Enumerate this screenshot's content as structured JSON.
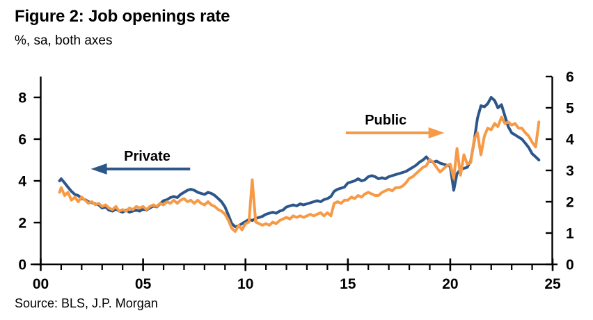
{
  "source": "Source: BLS, J.P. Morgan",
  "colors": {
    "private": "#2D5789",
    "public": "#F79A47",
    "axis": "#000000",
    "background": "#FFFFFF"
  },
  "chart_data": {
    "type": "line",
    "title": "Figure 2: Job openings rate",
    "subtitle": "%, sa, both axes",
    "grid": "off",
    "legend": "inline-arrow-annotations",
    "x_axis": {
      "unit": "year",
      "range": [
        2000,
        2025
      ],
      "major_tick_years": [
        2000,
        2005,
        2010,
        2015,
        2020,
        2025
      ],
      "major_tick_labels": [
        "00",
        "05",
        "10",
        "15",
        "20",
        "25"
      ],
      "minor_tick_step": 1
    },
    "left_axis": {
      "for_series": "Private",
      "range": [
        0,
        9
      ],
      "tick_values": [
        0,
        2,
        4,
        6,
        8
      ]
    },
    "right_axis": {
      "for_series": "Public",
      "range": [
        0,
        6
      ],
      "tick_values": [
        0,
        1,
        2,
        3,
        4,
        5,
        6
      ]
    },
    "x": [
      2000.92,
      2001,
      2001.17,
      2001.33,
      2001.5,
      2001.67,
      2001.83,
      2002,
      2002.17,
      2002.33,
      2002.5,
      2002.67,
      2002.83,
      2003,
      2003.17,
      2003.33,
      2003.5,
      2003.67,
      2003.83,
      2004,
      2004.17,
      2004.33,
      2004.5,
      2004.67,
      2004.83,
      2005,
      2005.17,
      2005.33,
      2005.5,
      2005.67,
      2005.83,
      2006,
      2006.17,
      2006.33,
      2006.5,
      2006.67,
      2006.83,
      2007,
      2007.17,
      2007.33,
      2007.5,
      2007.67,
      2007.83,
      2008,
      2008.17,
      2008.33,
      2008.5,
      2008.67,
      2008.83,
      2009,
      2009.17,
      2009.33,
      2009.5,
      2009.67,
      2009.83,
      2010,
      2010.17,
      2010.33,
      2010.5,
      2010.67,
      2010.83,
      2011,
      2011.17,
      2011.33,
      2011.5,
      2011.67,
      2011.83,
      2012,
      2012.17,
      2012.33,
      2012.5,
      2012.67,
      2012.83,
      2013,
      2013.17,
      2013.33,
      2013.5,
      2013.67,
      2013.83,
      2014,
      2014.17,
      2014.33,
      2014.5,
      2014.67,
      2014.83,
      2015,
      2015.17,
      2015.33,
      2015.5,
      2015.67,
      2015.83,
      2016,
      2016.17,
      2016.33,
      2016.5,
      2016.67,
      2016.83,
      2017,
      2017.17,
      2017.33,
      2017.5,
      2017.67,
      2017.83,
      2018,
      2018.17,
      2018.33,
      2018.5,
      2018.67,
      2018.83,
      2019,
      2019.17,
      2019.33,
      2019.5,
      2019.67,
      2019.83,
      2020,
      2020.17,
      2020.33,
      2020.5,
      2020.67,
      2020.83,
      2021,
      2021.17,
      2021.33,
      2021.5,
      2021.67,
      2021.83,
      2022,
      2022.17,
      2022.33,
      2022.5,
      2022.67,
      2022.83,
      2023,
      2023.17,
      2023.33,
      2023.5,
      2023.67,
      2023.83,
      2024,
      2024.17,
      2024.33
    ],
    "series": [
      {
        "name": "Private",
        "axis": "left",
        "color": "#2D5789",
        "values": [
          4.0,
          4.1,
          3.9,
          3.7,
          3.5,
          3.35,
          3.3,
          3.15,
          3.1,
          3.0,
          2.95,
          2.9,
          2.85,
          2.7,
          2.75,
          2.6,
          2.55,
          2.65,
          2.55,
          2.5,
          2.6,
          2.5,
          2.55,
          2.6,
          2.55,
          2.65,
          2.6,
          2.7,
          2.8,
          2.75,
          2.9,
          3.05,
          3.1,
          3.2,
          3.25,
          3.2,
          3.35,
          3.45,
          3.55,
          3.6,
          3.55,
          3.45,
          3.4,
          3.35,
          3.45,
          3.4,
          3.3,
          3.15,
          3.0,
          2.75,
          2.35,
          1.95,
          1.8,
          1.85,
          1.95,
          2.05,
          2.15,
          2.1,
          2.2,
          2.25,
          2.3,
          2.4,
          2.45,
          2.5,
          2.45,
          2.55,
          2.6,
          2.75,
          2.8,
          2.85,
          2.8,
          2.9,
          2.85,
          2.9,
          2.95,
          3.0,
          3.05,
          3.0,
          3.1,
          3.15,
          3.25,
          3.5,
          3.6,
          3.65,
          3.7,
          3.9,
          3.95,
          4.0,
          4.1,
          4.0,
          4.05,
          4.2,
          4.25,
          4.2,
          4.1,
          4.15,
          4.1,
          4.2,
          4.25,
          4.3,
          4.35,
          4.4,
          4.45,
          4.55,
          4.65,
          4.75,
          4.9,
          5.0,
          5.15,
          4.95,
          4.9,
          4.95,
          4.85,
          4.8,
          4.75,
          4.7,
          3.55,
          4.35,
          4.55,
          4.6,
          4.65,
          4.95,
          5.9,
          7.0,
          7.6,
          7.55,
          7.7,
          8.0,
          7.85,
          7.5,
          7.65,
          7.1,
          6.6,
          6.3,
          6.2,
          6.1,
          6.0,
          5.8,
          5.6,
          5.3,
          5.15,
          5.0
        ]
      },
      {
        "name": "Public",
        "axis": "right",
        "color": "#F79A47",
        "values": [
          2.3,
          2.45,
          2.2,
          2.3,
          2.05,
          2.15,
          2.0,
          2.15,
          2.05,
          1.95,
          2.0,
          1.9,
          1.95,
          1.85,
          1.9,
          1.8,
          1.75,
          1.85,
          1.7,
          1.75,
          1.7,
          1.8,
          1.75,
          1.85,
          1.8,
          1.85,
          1.75,
          1.85,
          1.9,
          1.85,
          1.95,
          1.9,
          2.0,
          1.95,
          2.05,
          1.95,
          2.05,
          2.1,
          2.0,
          2.05,
          1.95,
          2.05,
          1.95,
          1.9,
          2.0,
          1.9,
          1.85,
          1.75,
          1.7,
          1.6,
          1.4,
          1.15,
          1.05,
          1.25,
          1.1,
          1.3,
          1.35,
          2.7,
          1.35,
          1.3,
          1.25,
          1.3,
          1.25,
          1.35,
          1.3,
          1.4,
          1.45,
          1.5,
          1.45,
          1.55,
          1.5,
          1.55,
          1.5,
          1.55,
          1.6,
          1.55,
          1.6,
          1.65,
          1.55,
          1.65,
          1.55,
          1.95,
          2.0,
          1.95,
          2.05,
          2.05,
          2.15,
          2.1,
          2.2,
          2.15,
          2.25,
          2.3,
          2.25,
          2.2,
          2.2,
          2.3,
          2.35,
          2.4,
          2.35,
          2.45,
          2.45,
          2.5,
          2.6,
          2.75,
          2.8,
          2.9,
          3.0,
          3.1,
          3.15,
          3.35,
          3.25,
          3.1,
          2.95,
          3.05,
          3.15,
          3.2,
          2.75,
          3.7,
          2.85,
          3.5,
          3.2,
          3.25,
          4.0,
          4.2,
          3.5,
          4.1,
          4.35,
          4.3,
          4.5,
          4.4,
          4.7,
          4.5,
          4.55,
          4.45,
          4.5,
          4.35,
          4.35,
          4.2,
          4.1,
          3.9,
          3.75,
          4.55
        ]
      }
    ],
    "annotations": [
      {
        "label": "Private",
        "axis": "left",
        "label_x": 2005.2,
        "label_value": 5.2,
        "arrow_tail_x": 2007.3,
        "arrow_tip_x": 2002.45,
        "arrow_value": 4.57,
        "color": "#2D5789"
      },
      {
        "label": "Public",
        "axis": "right",
        "label_x": 2016.85,
        "label_value": 4.62,
        "arrow_tail_x": 2014.9,
        "arrow_tip_x": 2019.72,
        "arrow_value": 4.2,
        "color": "#F79A47"
      }
    ]
  }
}
